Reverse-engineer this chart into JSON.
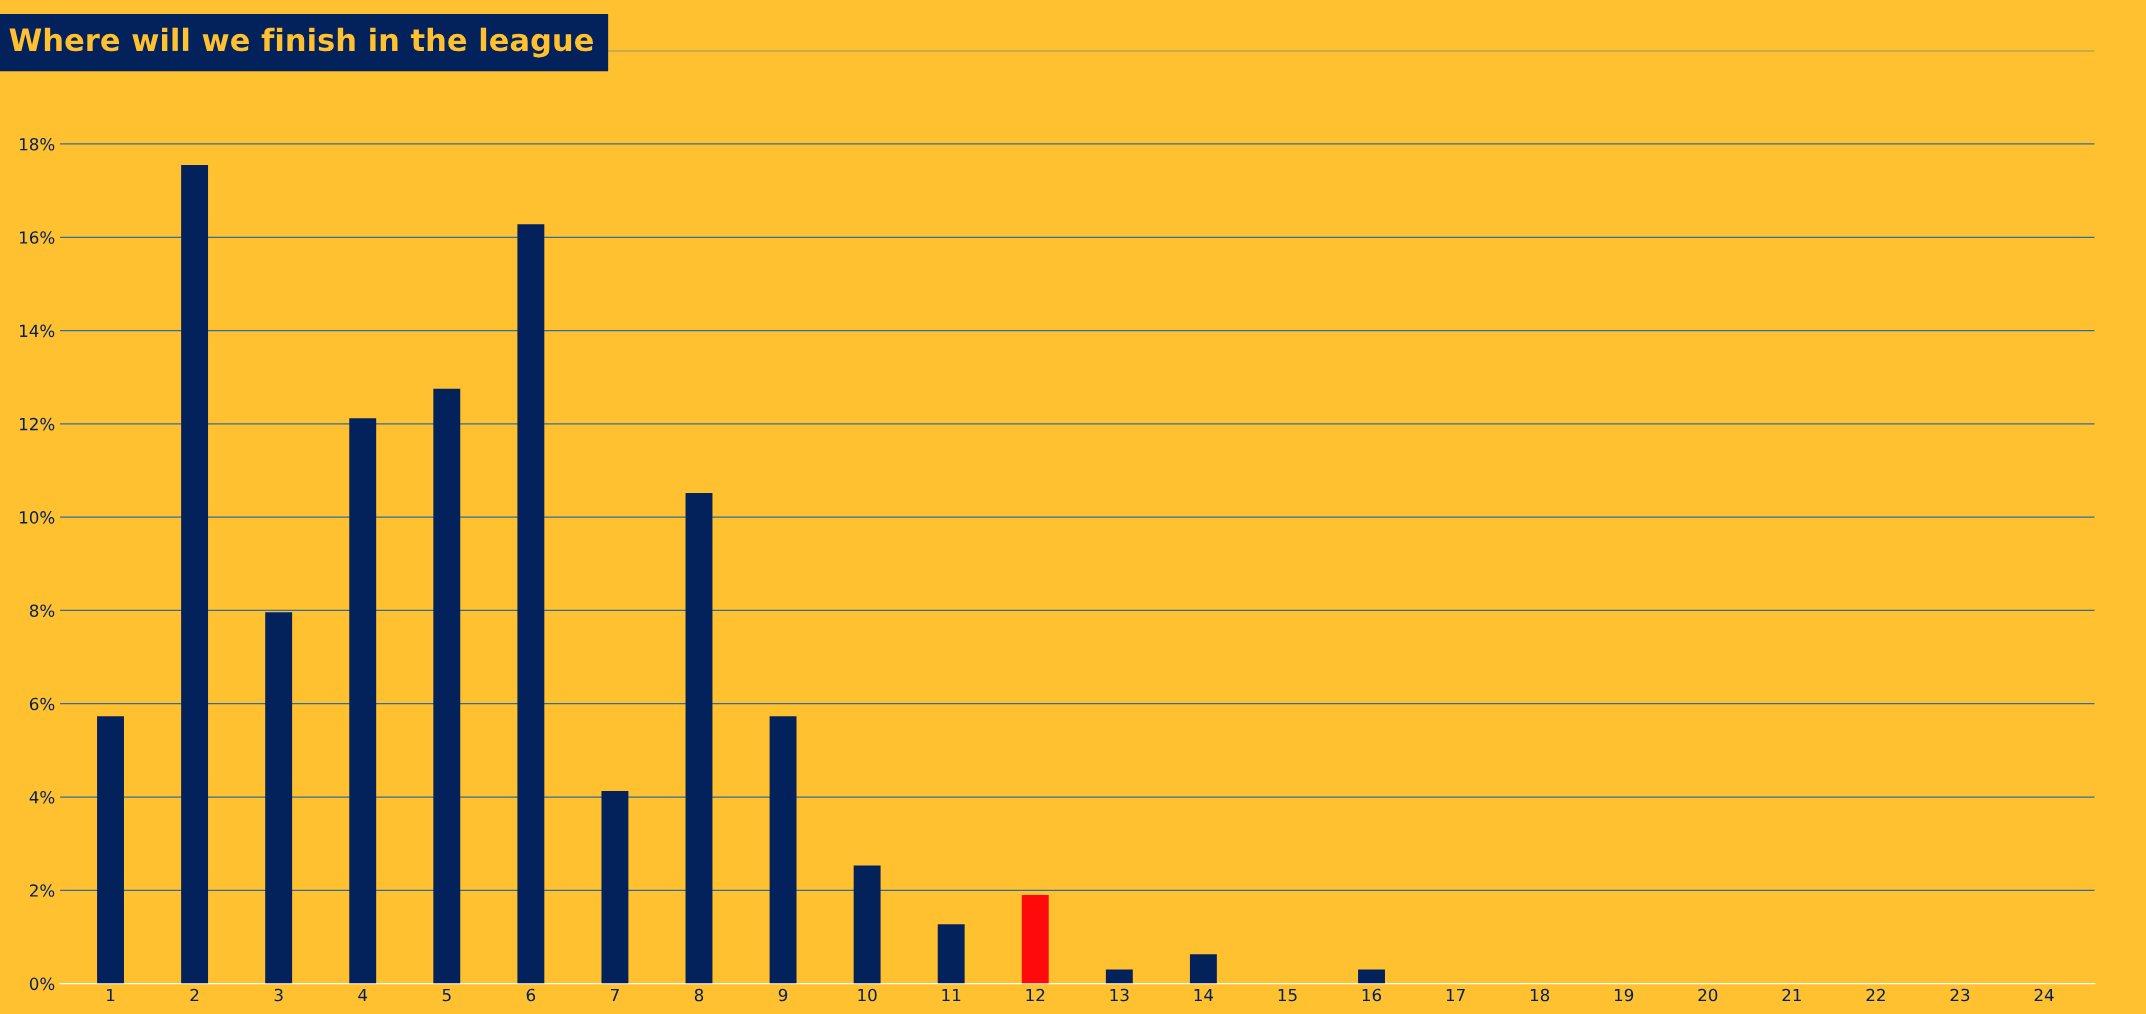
{
  "chart_data": {
    "type": "bar",
    "title": "Where will we finish in the league",
    "categories": [
      "1",
      "2",
      "3",
      "4",
      "5",
      "6",
      "7",
      "8",
      "9",
      "10",
      "11",
      "12",
      "13",
      "14",
      "15",
      "16",
      "17",
      "18",
      "19",
      "20",
      "21",
      "22",
      "23",
      "24"
    ],
    "values": [
      5.73,
      17.55,
      7.96,
      12.12,
      12.75,
      16.28,
      4.13,
      10.52,
      5.73,
      2.53,
      1.27,
      1.9,
      0.3,
      0.63,
      0,
      0.3,
      0,
      0,
      0,
      0,
      0,
      0,
      0,
      0
    ],
    "colors": [
      "#03215b",
      "#03215b",
      "#03215b",
      "#03215b",
      "#03215b",
      "#03215b",
      "#03215b",
      "#03215b",
      "#03215b",
      "#03215b",
      "#03215b",
      "#ff0a0a",
      "#03215b",
      "#03215b",
      "#03215b",
      "#03215b",
      "#03215b",
      "#03215b",
      "#03215b",
      "#03215b",
      "#03215b",
      "#03215b",
      "#03215b",
      "#03215b"
    ],
    "ylim": [
      0,
      20
    ],
    "yticks": [
      {
        "value": 0,
        "label": "0%"
      },
      {
        "value": 2,
        "label": "2%"
      },
      {
        "value": 4,
        "label": "4%"
      },
      {
        "value": 6,
        "label": "6%"
      },
      {
        "value": 8,
        "label": "8%"
      },
      {
        "value": 10,
        "label": "10%"
      },
      {
        "value": 12,
        "label": "12%"
      },
      {
        "value": 14,
        "label": "14%"
      },
      {
        "value": 16,
        "label": "16%"
      },
      {
        "value": 18,
        "label": "18%"
      },
      {
        "value": 20,
        "label": null
      }
    ],
    "grid": "y",
    "legend": false
  }
}
